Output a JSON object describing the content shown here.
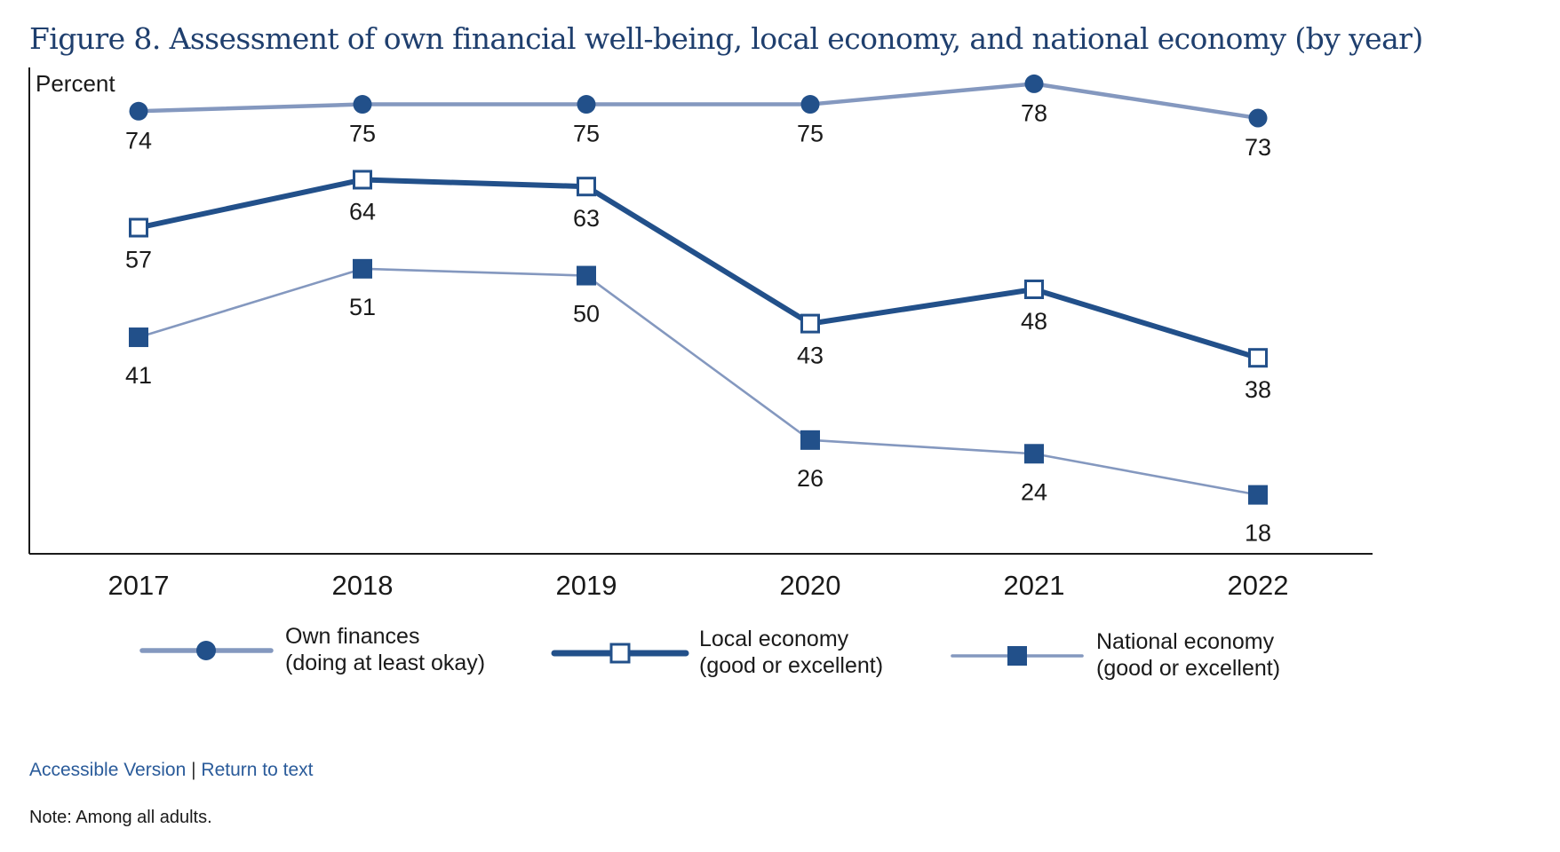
{
  "title": "Figure 8. Assessment of own financial well-being, local economy, and national economy (by year)",
  "links": {
    "accessible": "Accessible Version",
    "separator": "|",
    "return": "Return to text"
  },
  "note": "Note: Among all adults.",
  "colors": {
    "title": "#1f3f6e",
    "dark_blue": "#22508a",
    "light_blue": "#8498bf",
    "link": "#2a5b9a"
  },
  "chart_data": {
    "type": "line",
    "title": "Figure 8. Assessment of own financial well-being, local economy, and national economy (by year)",
    "ylabel": "Percent",
    "xlabel": "",
    "categories": [
      "2017",
      "2018",
      "2019",
      "2020",
      "2021",
      "2022"
    ],
    "ylim": [
      10,
      80
    ],
    "grid": false,
    "legend_position": "bottom",
    "series": [
      {
        "name": "Own finances\n(doing at least okay)",
        "legend_lines": [
          "Own finances",
          "(doing at least okay)"
        ],
        "values": [
          74,
          75,
          75,
          75,
          78,
          73
        ],
        "marker": "circle",
        "line_color": "#8498bf",
        "marker_color": "#22508a",
        "line_style": "medium",
        "label_position": "below"
      },
      {
        "name": "Local economy\n(good or excellent)",
        "legend_lines": [
          "Local economy",
          "(good or excellent)"
        ],
        "values": [
          57,
          64,
          63,
          43,
          48,
          38
        ],
        "marker": "open-square",
        "line_color": "#22508a",
        "marker_color": "#22508a",
        "line_style": "thick",
        "label_position": "below"
      },
      {
        "name": "National economy\n(good or excellent)",
        "legend_lines": [
          "National economy",
          "(good or excellent)"
        ],
        "values": [
          41,
          51,
          50,
          26,
          24,
          18
        ],
        "marker": "filled-square",
        "line_color": "#8498bf",
        "marker_color": "#22508a",
        "line_style": "thin",
        "label_position": "below"
      }
    ]
  }
}
